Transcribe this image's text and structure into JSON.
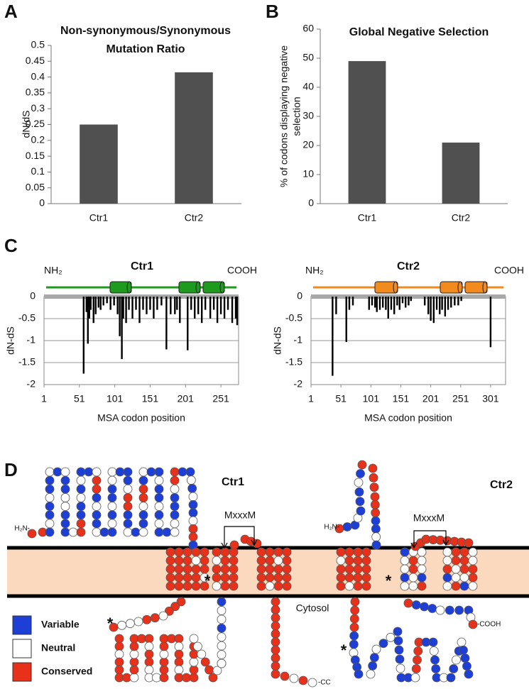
{
  "panel_labels": [
    "A",
    "B",
    "C",
    "D"
  ],
  "chart_data": [
    {
      "type": "bar",
      "title": [
        "Non-synonymous/Synonymous",
        "Mutation Ratio"
      ],
      "ylabel": [
        "dN/dS"
      ],
      "categories": [
        "Ctr1",
        "Ctr2"
      ],
      "values": [
        0.25,
        0.415
      ],
      "color": "#505050",
      "ylim": [
        0,
        0.5
      ],
      "yticks": [
        0,
        0.05,
        0.1,
        0.15,
        0.2,
        0.25,
        0.3,
        0.35,
        0.4,
        0.45,
        0.5
      ]
    },
    {
      "type": "bar",
      "title": [
        "Global Negative Selection"
      ],
      "ylabel": [
        "% of codons displaying negative",
        "selection"
      ],
      "categories": [
        "Ctr1",
        "Ctr2"
      ],
      "values": [
        49,
        21
      ],
      "color": "#505050",
      "ylim": [
        0,
        60
      ],
      "yticks": [
        0,
        10,
        20,
        30,
        40,
        50,
        60
      ]
    },
    {
      "type": "spikes",
      "title": [
        "Ctr1"
      ],
      "ylabel": [
        "dN-dS"
      ],
      "xlabel": "MSA codon position",
      "annotations": [
        "NH₂",
        "COOH"
      ],
      "topology_color": "#1e9a1e",
      "color": "#000000",
      "grid": true,
      "x": [
        57,
        61,
        63,
        65,
        67,
        71,
        74,
        78,
        81,
        85,
        90,
        95,
        100,
        105,
        108,
        111,
        113,
        117,
        121,
        126,
        131,
        136,
        141,
        146,
        151,
        156,
        161,
        167,
        174,
        180,
        186,
        189,
        193,
        204,
        209,
        214,
        219,
        224,
        229,
        236,
        241,
        246,
        251,
        256,
        261,
        267,
        272,
        274
      ],
      "values": [
        -1.75,
        -0.35,
        -1.07,
        -0.5,
        -0.3,
        -0.6,
        -0.4,
        -0.25,
        -0.3,
        -0.2,
        -0.15,
        -0.3,
        -0.2,
        -0.4,
        -0.9,
        -1.42,
        -0.5,
        -0.6,
        -0.3,
        -0.5,
        -0.3,
        -0.6,
        -0.3,
        -0.4,
        -0.3,
        -0.5,
        -0.3,
        -0.2,
        -1.2,
        -0.4,
        -0.4,
        -0.3,
        -0.6,
        -1.22,
        -0.3,
        -0.5,
        -0.4,
        -0.6,
        -0.3,
        -0.5,
        -0.3,
        -0.6,
        -0.4,
        -0.5,
        -0.3,
        -0.6,
        -0.5,
        -0.65
      ],
      "xlim": [
        1,
        276
      ],
      "xticks": [
        1,
        51,
        101,
        151,
        201,
        251
      ],
      "ylim": [
        -2,
        0
      ],
      "yticks": [
        0,
        -0.5,
        -1,
        -1.5,
        -2
      ]
    },
    {
      "type": "spikes",
      "title": [
        "Ctr2"
      ],
      "ylabel": [
        "dN-dS"
      ],
      "xlabel": "MSA codon position",
      "annotations": [
        "NH₂",
        "COOH"
      ],
      "topology_color": "#f28a1e",
      "color": "#000000",
      "grid": true,
      "x": [
        37,
        43,
        60,
        65,
        71,
        98,
        103,
        108,
        111,
        116,
        121,
        126,
        130,
        135,
        140,
        145,
        149,
        154,
        159,
        164,
        168,
        191,
        197,
        201,
        206,
        211,
        216,
        220,
        225,
        230,
        235,
        241,
        247,
        252,
        301
      ],
      "values": [
        -1.8,
        -0.4,
        -1.03,
        -0.3,
        -0.2,
        -0.3,
        -0.2,
        -0.25,
        -0.35,
        -0.3,
        -0.25,
        -0.3,
        -0.5,
        -0.3,
        -0.4,
        -0.2,
        -0.3,
        -0.15,
        -0.25,
        -0.2,
        -0.1,
        -0.2,
        -0.4,
        -0.55,
        -0.6,
        -0.3,
        -0.4,
        -0.3,
        -0.45,
        -0.3,
        -0.25,
        -0.2,
        -0.2,
        -0.1,
        -1.15
      ],
      "xlim": [
        1,
        326
      ],
      "xticks": [
        1,
        51,
        101,
        151,
        201,
        251,
        301
      ],
      "ylim": [
        -2,
        0
      ],
      "yticks": [
        0,
        -0.5,
        -1,
        -1.5,
        -2
      ]
    }
  ],
  "diagram": {
    "proteins": [
      {
        "name": "Ctr1",
        "motif": "MxxxM",
        "n_term": "H₂N-",
        "c_term": "-CC"
      },
      {
        "name": "Ctr2",
        "motif": "MxxxM",
        "n_term": "H₂N-",
        "c_term": "-COOH"
      }
    ],
    "compartment": "Cytosol",
    "marker": "*",
    "membrane_color": "#fbd9bf",
    "legend": [
      {
        "label": "Variable",
        "color": "#1d3fd6"
      },
      {
        "label": "Neutral",
        "color": "#ffffff"
      },
      {
        "label": "Conserved",
        "color": "#e8311a"
      }
    ]
  }
}
